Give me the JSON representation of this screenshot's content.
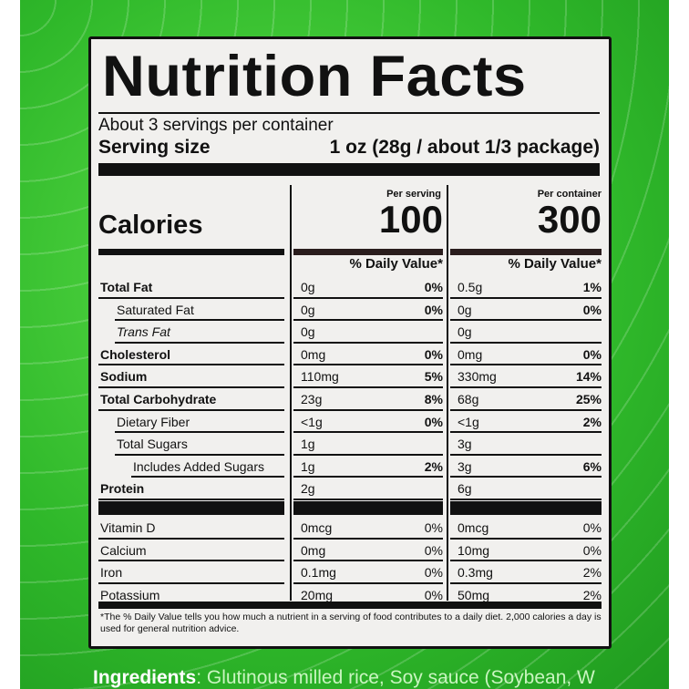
{
  "title": "Nutrition Facts",
  "servings": "About 3 servings per container",
  "serving_size_label": "Serving size",
  "serving_size_value": "1 oz (28g / about 1/3 package)",
  "calories_label": "Calories",
  "per_serving_label": "Per serving",
  "per_container_label": "Per container",
  "calories_serving": "100",
  "calories_container": "300",
  "dv_header": "% Daily Value*",
  "nutrients": [
    {
      "name": "Total Fat",
      "bold": true,
      "serving": "0g",
      "serving_dv": "0%",
      "container": "0.5g",
      "container_dv": "1%"
    },
    {
      "name": "Saturated Fat",
      "indent": 1,
      "serving": "0g",
      "serving_dv": "0%",
      "container": "0g",
      "container_dv": "0%"
    },
    {
      "name": "Trans Fat",
      "indent": 1,
      "serving": "0g",
      "serving_dv": "",
      "container": "0g",
      "container_dv": ""
    },
    {
      "name": "Cholesterol",
      "bold": true,
      "serving": "0mg",
      "serving_dv": "0%",
      "container": "0mg",
      "container_dv": "0%"
    },
    {
      "name": "Sodium",
      "bold": true,
      "serving": "110mg",
      "serving_dv": "5%",
      "container": "330mg",
      "container_dv": "14%"
    },
    {
      "name": "Total Carbohydrate",
      "bold": true,
      "serving": "23g",
      "serving_dv": "8%",
      "container": "68g",
      "container_dv": "25%"
    },
    {
      "name": "Dietary Fiber",
      "indent": 1,
      "serving": "<1g",
      "serving_dv": "0%",
      "container": "<1g",
      "container_dv": "2%"
    },
    {
      "name": "Total Sugars",
      "indent": 1,
      "serving": "1g",
      "serving_dv": "",
      "container": "3g",
      "container_dv": ""
    },
    {
      "name": "Includes Added Sugars",
      "indent": 2,
      "serving": "1g",
      "serving_dv": "2%",
      "container": "3g",
      "container_dv": "6%"
    },
    {
      "name": "Protein",
      "bold": true,
      "serving": "2g",
      "serving_dv": "",
      "container": "6g",
      "container_dv": ""
    }
  ],
  "vitamins": [
    {
      "name": "Vitamin D",
      "serving": "0mcg",
      "serving_dv": "0%",
      "container": "0mcg",
      "container_dv": "0%"
    },
    {
      "name": "Calcium",
      "serving": "0mg",
      "serving_dv": "0%",
      "container": "10mg",
      "container_dv": "0%"
    },
    {
      "name": "Iron",
      "serving": "0.1mg",
      "serving_dv": "0%",
      "container": "0.3mg",
      "container_dv": "2%"
    },
    {
      "name": "Potassium",
      "serving": "20mg",
      "serving_dv": "0%",
      "container": "50mg",
      "container_dv": "2%"
    }
  ],
  "footnote": "*The % Daily Value tells you how much a nutrient in a serving of food contributes to a daily diet. 2,000 calories a day is used for general nutrition advice.",
  "ingredients_label": "Ingredients",
  "ingredients_text": ": Glutinous milled rice, Soy sauce (Soybean, W"
}
